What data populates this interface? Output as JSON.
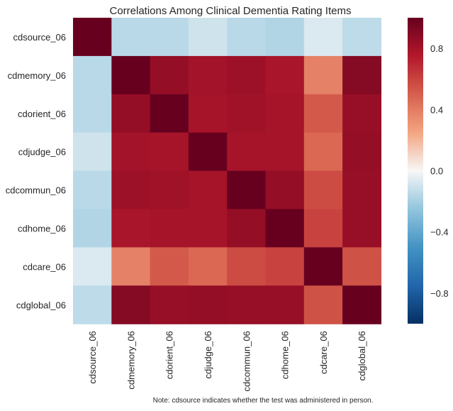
{
  "chart_data": {
    "type": "heatmap",
    "title": "Correlations Among Clinical Dementia Rating Items",
    "row_labels": [
      "cdsource_06",
      "cdmemory_06",
      "cdorient_06",
      "cdjudge_06",
      "cdcommun_06",
      "cdhome_06",
      "cdcare_06",
      "cdglobal_06"
    ],
    "column_labels": [
      "cdsource_06",
      "cdmemory_06",
      "cdorient_06",
      "cdjudge_06",
      "cdcommun_06",
      "cdhome_06",
      "cdcare_06",
      "cdglobal_06"
    ],
    "values": [
      [
        1.0,
        -0.15,
        -0.15,
        -0.1,
        -0.15,
        -0.17,
        -0.07,
        -0.14
      ],
      [
        -0.15,
        1.0,
        0.85,
        0.8,
        0.82,
        0.78,
        0.38,
        0.9
      ],
      [
        -0.15,
        0.85,
        1.0,
        0.79,
        0.81,
        0.79,
        0.52,
        0.84
      ],
      [
        -0.1,
        0.8,
        0.79,
        1.0,
        0.79,
        0.79,
        0.47,
        0.85
      ],
      [
        -0.15,
        0.82,
        0.81,
        0.79,
        1.0,
        0.85,
        0.57,
        0.84
      ],
      [
        -0.17,
        0.78,
        0.79,
        0.79,
        0.85,
        1.0,
        0.6,
        0.84
      ],
      [
        -0.07,
        0.38,
        0.52,
        0.47,
        0.57,
        0.6,
        1.0,
        0.55
      ],
      [
        -0.14,
        0.9,
        0.84,
        0.85,
        0.84,
        0.84,
        0.55,
        1.0
      ]
    ],
    "colorbar": {
      "vmin": -1.0,
      "vmax": 1.0,
      "ticks": [
        -0.8,
        -0.4,
        0.0,
        0.4,
        0.8
      ],
      "tick_labels": [
        "−0.8",
        "−0.4",
        "0.0",
        "0.4",
        "0.8"
      ],
      "colormap": "RdBu_r"
    },
    "grid": false
  },
  "note": "Note: cdsource indicates whether the test was administered in person."
}
